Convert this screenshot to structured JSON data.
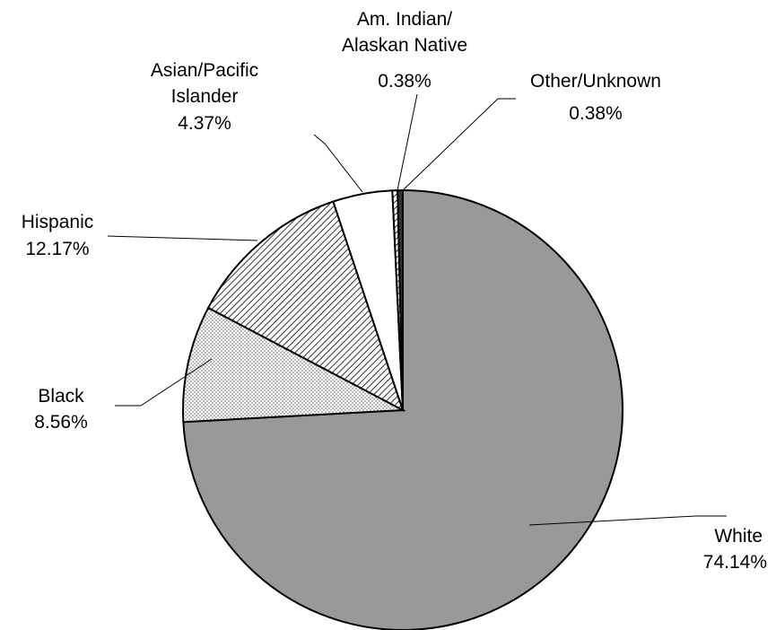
{
  "chart_data": {
    "type": "pie",
    "title": "",
    "legend": "none",
    "slices": [
      {
        "name": "White",
        "value": 74.14,
        "label": "74.14%",
        "fill": "#999999",
        "pattern": "solid"
      },
      {
        "name": "Black",
        "value": 8.56,
        "label": "8.56%",
        "fill": "#ffffff",
        "pattern": "dots"
      },
      {
        "name": "Hispanic",
        "value": 12.17,
        "label": "12.17%",
        "fill": "#ffffff",
        "pattern": "diagonal"
      },
      {
        "name": "Asian/Pacific Islander",
        "value": 4.37,
        "label": "4.37%",
        "fill": "#ffffff",
        "pattern": "solid"
      },
      {
        "name": "Am. Indian/ Alaskan Native",
        "value": 0.38,
        "label": "0.38%",
        "fill": "#ffffff",
        "pattern": "diagonal"
      },
      {
        "name": "Other/Unknown",
        "value": 0.38,
        "label": "0.38%",
        "fill": "#333333",
        "pattern": "solid"
      }
    ]
  },
  "labels": {
    "white": {
      "name": "White",
      "pct": "74.14%"
    },
    "black": {
      "name": "Black",
      "pct": "8.56%"
    },
    "hispanic": {
      "name": "Hispanic",
      "pct": "12.17%"
    },
    "asian": {
      "line1": "Asian/Pacific",
      "line2": "Islander",
      "pct": "4.37%"
    },
    "amindian": {
      "line1": "Am. Indian/",
      "line2": "Alaskan Native",
      "pct": "0.38%"
    },
    "other": {
      "name": "Other/Unknown",
      "pct": "0.38%"
    }
  }
}
